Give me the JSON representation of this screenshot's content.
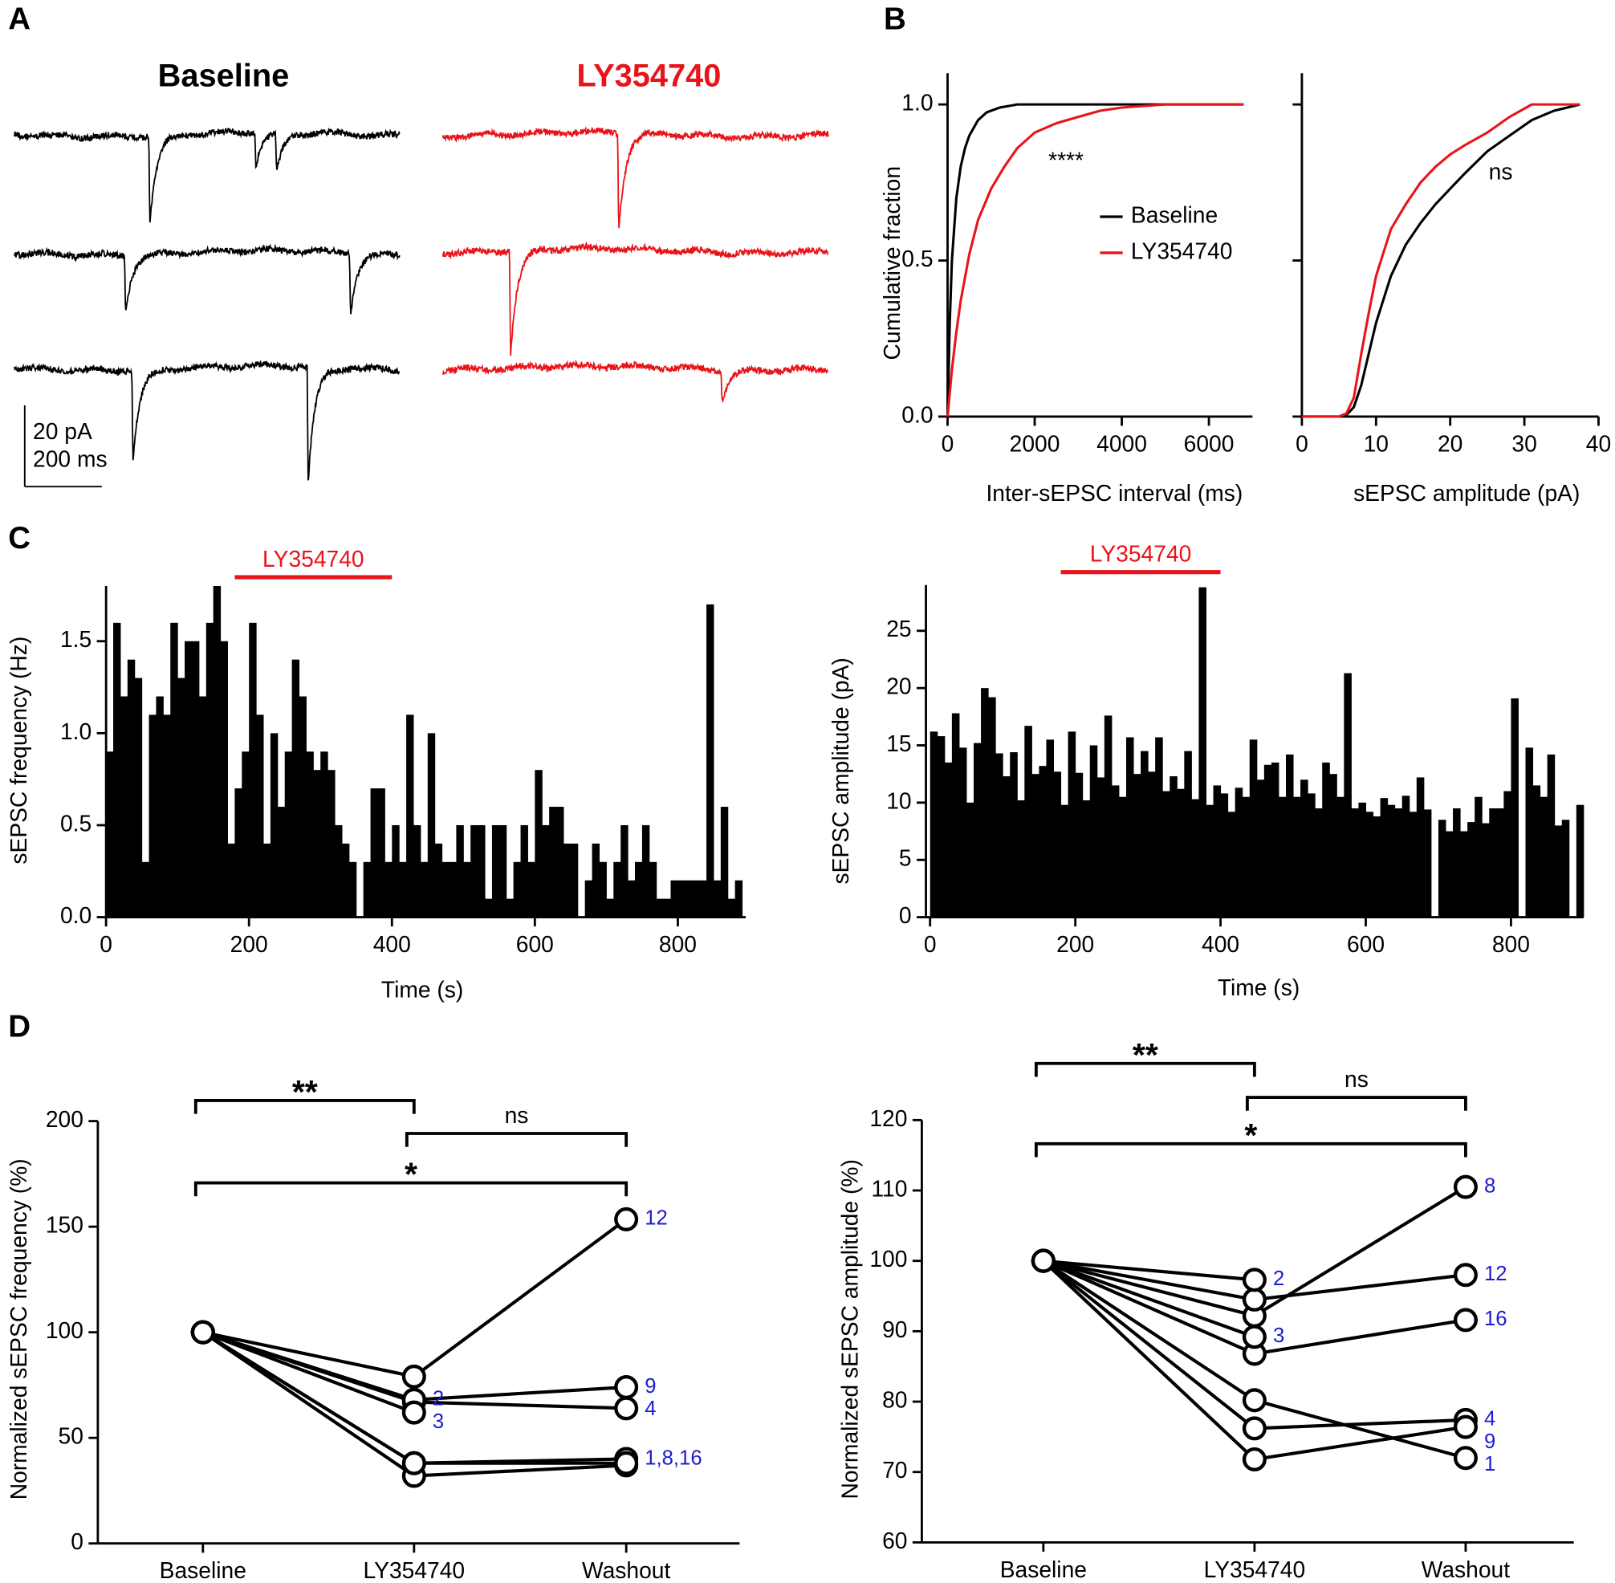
{
  "panel_labels": [
    "A",
    "B",
    "C",
    "D"
  ],
  "chart_data": [
    {
      "type": "traces",
      "series": [
        {
          "name": "Baseline",
          "color": "#000000",
          "sweeps": [
            [
              {
                "t": 349,
                "amp": 22
              },
              {
                "t": 624,
                "amp": 8
              },
              {
                "t": 678,
                "amp": 10
              }
            ],
            [
              {
                "t": 286,
                "amp": 14
              },
              {
                "t": 870,
                "amp": 15
              }
            ],
            [
              {
                "t": 305,
                "amp": 23
              },
              {
                "t": 760,
                "amp": 29
              }
            ]
          ]
        },
        {
          "name": "LY354740",
          "color": "#e8141a",
          "sweeps": [
            [
              {
                "t": 454,
                "amp": 24
              }
            ],
            [
              {
                "t": 173,
                "amp": 26
              }
            ],
            [
              {
                "t": 722,
                "amp": 8
              }
            ]
          ]
        }
      ],
      "scale_bar": {
        "y": 20,
        "y_label": "20 pA",
        "x": 200,
        "x_label": "200 ms"
      }
    },
    {
      "type": "line",
      "xlabel": "Inter-sEPSC interval (ms)",
      "ylabel": "Cumulative fraction",
      "xlim": [
        0,
        7000
      ],
      "xticks": [
        0,
        2000,
        4000,
        6000
      ],
      "ylim": [
        0,
        1.1
      ],
      "yticks": [
        {
          "value": 0,
          "label": "0.0"
        },
        {
          "value": 0.5,
          "label": "0.5"
        },
        {
          "value": 1,
          "label": "1.0"
        }
      ],
      "annotation": "****",
      "legend": "right",
      "series": [
        {
          "name": "Baseline",
          "color": "#000000",
          "x": [
            0,
            50,
            100,
            200,
            300,
            400,
            500,
            700,
            900,
            1200,
            1600,
            2500,
            4000,
            6800
          ],
          "values": [
            0,
            0.3,
            0.5,
            0.7,
            0.8,
            0.86,
            0.9,
            0.95,
            0.975,
            0.99,
            1,
            1,
            1,
            1
          ]
        },
        {
          "name": "LY354740",
          "color": "#e8141a",
          "x": [
            0,
            100,
            200,
            300,
            500,
            700,
            1000,
            1300,
            1600,
            2000,
            2500,
            3000,
            3500,
            4000,
            5000,
            6800
          ],
          "values": [
            0,
            0.15,
            0.27,
            0.37,
            0.52,
            0.63,
            0.73,
            0.8,
            0.86,
            0.91,
            0.94,
            0.96,
            0.98,
            0.99,
            1,
            1
          ]
        }
      ]
    },
    {
      "type": "line",
      "xlabel": "sEPSC amplitude (pA)",
      "xlim": [
        0,
        40
      ],
      "xticks": [
        0,
        10,
        20,
        30,
        40
      ],
      "ylim": [
        0,
        1.1
      ],
      "yticks": [
        0,
        0.5,
        1
      ],
      "ytick_labels": false,
      "annotation": "ns",
      "series": [
        {
          "color": "#000000",
          "x": [
            0,
            5,
            6,
            7,
            8,
            9,
            10,
            12,
            14,
            16,
            18,
            20,
            22,
            25,
            28,
            31,
            34,
            37.5
          ],
          "values": [
            0,
            0,
            0.005,
            0.03,
            0.1,
            0.2,
            0.3,
            0.45,
            0.55,
            0.62,
            0.68,
            0.73,
            0.78,
            0.85,
            0.9,
            0.95,
            0.98,
            1
          ]
        },
        {
          "color": "#e8141a",
          "x": [
            0,
            5,
            6,
            7,
            8,
            9,
            10,
            12,
            14,
            16,
            18,
            20,
            22,
            25,
            28,
            31,
            37.5
          ],
          "values": [
            0,
            0,
            0.01,
            0.06,
            0.2,
            0.33,
            0.45,
            0.6,
            0.68,
            0.75,
            0.8,
            0.84,
            0.87,
            0.91,
            0.96,
            1,
            1
          ]
        }
      ]
    },
    {
      "type": "histogram",
      "xlabel": "Time (s)",
      "ylabel": "sEPSC frequency (Hz)",
      "xlim": [
        -5,
        895
      ],
      "xticks": [
        0,
        200,
        400,
        600,
        800
      ],
      "ylim": [
        0,
        1.8
      ],
      "yticks": [
        {
          "value": 0,
          "label": "0.0"
        },
        {
          "value": 0.5,
          "label": "0.5"
        },
        {
          "value": 1,
          "label": "1.0"
        },
        {
          "value": 1.5,
          "label": "1.5"
        }
      ],
      "color": "#000000",
      "treatment": {
        "label": "LY354740",
        "start": 180,
        "end": 400,
        "color": "#e8141a"
      },
      "bins": [
        0,
        10,
        20,
        30,
        40,
        50,
        60,
        70,
        80,
        90,
        100,
        110,
        120,
        130,
        140,
        150,
        160,
        170,
        180,
        190,
        200,
        210,
        220,
        230,
        240,
        250,
        260,
        270,
        280,
        290,
        300,
        310,
        320,
        330,
        340,
        350,
        360,
        370,
        380,
        390,
        400,
        410,
        420,
        430,
        440,
        450,
        460,
        470,
        480,
        490,
        500,
        510,
        520,
        530,
        540,
        550,
        560,
        570,
        580,
        590,
        600,
        610,
        620,
        630,
        640,
        650,
        660,
        670,
        680,
        690,
        700,
        710,
        720,
        730,
        740,
        750,
        760,
        770,
        780,
        790,
        800,
        810,
        820,
        830,
        840,
        850,
        860,
        870,
        880,
        890
      ],
      "values": [
        0.9,
        1.6,
        1.2,
        1.4,
        1.3,
        0.3,
        1.1,
        1.2,
        1.1,
        1.6,
        1.3,
        1.5,
        1.5,
        1.2,
        1.6,
        1.8,
        1.5,
        0.4,
        0.7,
        0.9,
        1.6,
        1.1,
        0.4,
        1.0,
        0.6,
        0.9,
        1.4,
        1.2,
        0.9,
        0.8,
        0.9,
        0.8,
        0.5,
        0.4,
        0.3,
        0.0,
        0.3,
        0.7,
        0.7,
        0.3,
        0.5,
        0.3,
        1.1,
        0.5,
        0.3,
        1.0,
        0.4,
        0.3,
        0.3,
        0.5,
        0.3,
        0.5,
        0.5,
        0.1,
        0.5,
        0.5,
        0.1,
        0.3,
        0.5,
        0.3,
        0.8,
        0.5,
        0.6,
        0.6,
        0.4,
        0.4,
        0.0,
        0.2,
        0.4,
        0.3,
        0.1,
        0.3,
        0.5,
        0.2,
        0.3,
        0.5,
        0.3,
        0.1,
        0.1,
        0.2,
        0.2,
        0.2,
        0.2,
        0.2,
        1.7,
        0.2,
        0.6,
        0.1,
        0.2
      ]
    },
    {
      "type": "histogram",
      "xlabel": "Time (s)",
      "ylabel": "sEPSC amplitude (pA)",
      "xlim": [
        -5,
        900
      ],
      "xticks": [
        0,
        200,
        400,
        600,
        800
      ],
      "ylim": [
        0,
        29
      ],
      "yticks": [
        0,
        5,
        10,
        15,
        20,
        25
      ],
      "color": "#000000",
      "treatment": {
        "label": "LY354740",
        "start": 180,
        "end": 400,
        "color": "#e8141a"
      },
      "bins": [
        0,
        10,
        20,
        30,
        40,
        50,
        60,
        70,
        80,
        90,
        100,
        110,
        120,
        130,
        140,
        150,
        160,
        170,
        180,
        190,
        200,
        210,
        220,
        230,
        240,
        250,
        260,
        270,
        280,
        290,
        300,
        310,
        320,
        330,
        340,
        350,
        360,
        370,
        380,
        390,
        400,
        410,
        420,
        430,
        440,
        450,
        460,
        470,
        480,
        490,
        500,
        510,
        520,
        530,
        540,
        550,
        560,
        570,
        580,
        590,
        600,
        610,
        620,
        630,
        640,
        650,
        660,
        670,
        680,
        690,
        700,
        710,
        720,
        730,
        740,
        750,
        760,
        770,
        780,
        790,
        800,
        810,
        820,
        830,
        840,
        850,
        860,
        870,
        880,
        890,
        900
      ],
      "values": [
        16.2,
        15.8,
        13.5,
        17.8,
        14.8,
        10,
        15.2,
        20,
        19.2,
        14.3,
        12.3,
        14.4,
        10.2,
        16.7,
        12.5,
        13.2,
        15.5,
        12.7,
        9.8,
        16.2,
        12.6,
        10.2,
        15,
        12.2,
        17.6,
        11.5,
        10.5,
        15.7,
        12.5,
        14.5,
        12.7,
        15.7,
        11,
        12.3,
        11.2,
        14.5,
        10.3,
        28.8,
        9.8,
        11.5,
        10.8,
        9.2,
        11.3,
        10.5,
        15.5,
        12,
        13.3,
        13.5,
        10.5,
        14.2,
        10.5,
        12,
        10.8,
        9.5,
        13.5,
        12.5,
        10.5,
        21.3,
        9.5,
        10,
        9.2,
        8.8,
        10.4,
        9.8,
        9.5,
        10.6,
        9.2,
        12.2,
        9.4,
        0,
        8.5,
        7.5,
        9.5,
        7.5,
        8.3,
        10.5,
        8.2,
        9.5,
        9.5,
        11,
        19.1,
        0,
        14.8,
        11.5,
        10.5,
        14.2,
        8,
        8.5,
        0,
        9.8
      ]
    },
    {
      "type": "paired",
      "ylabel": "Normalized sEPSC frequency (%)",
      "categories": [
        "Baseline",
        "LY354740",
        "Washout"
      ],
      "ylim": [
        0,
        200
      ],
      "yticks": [
        0,
        50,
        100,
        150,
        200
      ],
      "color": "#000000",
      "label_color": "#1c1cd0",
      "series": [
        {
          "name": "12",
          "values": [
            100,
            79,
            153.5
          ]
        },
        {
          "name": "9",
          "values": [
            100,
            68,
            74
          ]
        },
        {
          "name": "4",
          "values": [
            100,
            67,
            64
          ]
        },
        {
          "name": "2",
          "values": [
            100,
            68,
            null
          ]
        },
        {
          "name": "3",
          "values": [
            100,
            62,
            null
          ]
        },
        {
          "name": "1,8,16",
          "values": [
            100,
            38,
            40
          ]
        },
        {
          "values": [
            100,
            32,
            37
          ]
        },
        {
          "values": [
            100,
            38,
            38
          ]
        }
      ],
      "brackets": [
        {
          "from": 0,
          "to": 1,
          "label": "**"
        },
        {
          "from": 1,
          "to": 2,
          "label": "ns"
        },
        {
          "from": 0,
          "to": 2,
          "label": "*"
        }
      ]
    },
    {
      "type": "paired",
      "ylabel": "Normalized sEPSC amplitude (%)",
      "categories": [
        "Baseline",
        "LY354740",
        "Washout"
      ],
      "ylim": [
        60,
        120
      ],
      "yticks": [
        60,
        70,
        80,
        90,
        100,
        110,
        120
      ],
      "color": "#000000",
      "label_color": "#1c1cd0",
      "series": [
        {
          "name": "8",
          "values": [
            100,
            92.2,
            110.5
          ]
        },
        {
          "name": "12",
          "values": [
            100,
            94.5,
            98
          ]
        },
        {
          "name": "16",
          "values": [
            100,
            86.8,
            91.6
          ]
        },
        {
          "name": "4",
          "values": [
            100,
            76.2,
            77.4
          ]
        },
        {
          "name": "9",
          "values": [
            100,
            71.8,
            76.4
          ]
        },
        {
          "name": "1",
          "values": [
            100,
            80.2,
            72
          ]
        },
        {
          "name": "2",
          "values": [
            100,
            97.3,
            null
          ]
        },
        {
          "name": "3",
          "values": [
            100,
            89.2,
            null
          ]
        }
      ],
      "brackets": [
        {
          "from": 0,
          "to": 1,
          "label": "**"
        },
        {
          "from": 1,
          "to": 2,
          "label": "ns"
        },
        {
          "from": 0,
          "to": 2,
          "label": "*"
        }
      ]
    }
  ]
}
